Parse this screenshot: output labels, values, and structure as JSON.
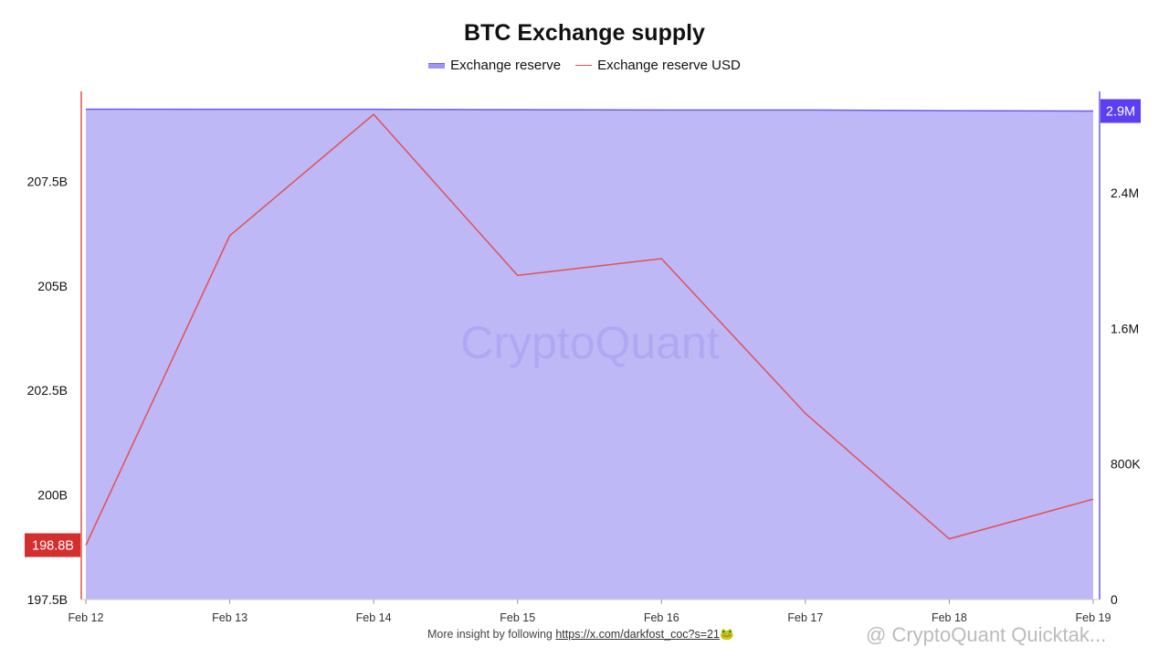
{
  "chart_data": {
    "type": "area",
    "title": "BTC Exchange supply",
    "legend_position": "top-center",
    "x": [
      "Feb 12",
      "Feb 13",
      "Feb 14",
      "Feb 15",
      "Feb 16",
      "Feb 17",
      "Feb 18",
      "Feb 19"
    ],
    "series": [
      {
        "name": "Exchange reserve",
        "axis": "right",
        "kind": "area",
        "color": "#6b5cf0",
        "fill": "#bfb8f7",
        "values": [
          2895000,
          2894000,
          2894000,
          2892000,
          2890000,
          2890000,
          2886000,
          2884000
        ]
      },
      {
        "name": "Exchange reserve USD",
        "axis": "left",
        "kind": "line",
        "color": "#e05252",
        "values": [
          198800000000,
          206200000000,
          209100000000,
          205250000000,
          205650000000,
          201950000000,
          198950000000,
          199900000000
        ]
      }
    ],
    "left_axis": {
      "ylim": [
        197500000000,
        209650000000
      ],
      "ticks": [
        "197.5B",
        "200B",
        "202.5B",
        "205B",
        "207.5B"
      ],
      "tick_values": [
        197500000000,
        200000000000,
        202500000000,
        205000000000,
        207500000000
      ]
    },
    "right_axis": {
      "ylim": [
        0,
        3000000
      ],
      "ticks": [
        "0",
        "800K",
        "1.6M",
        "2.4M"
      ],
      "tick_values": [
        0,
        800000,
        1600000,
        2400000
      ]
    },
    "left_badge": {
      "label": "198.8B",
      "value": 198800000000,
      "color": "#d32f2f"
    },
    "right_badge": {
      "label": "2.9M",
      "value": 2884000,
      "color": "#5b3ff0"
    },
    "grid": false,
    "watermark": "CryptoQuant"
  },
  "footer": {
    "text": "More insight by following ",
    "link": "https://x.com/darkfost_coc?s=21",
    "emoji": "🐸"
  },
  "overlay_watermark": "@ CryptoQuant Quicktak..."
}
